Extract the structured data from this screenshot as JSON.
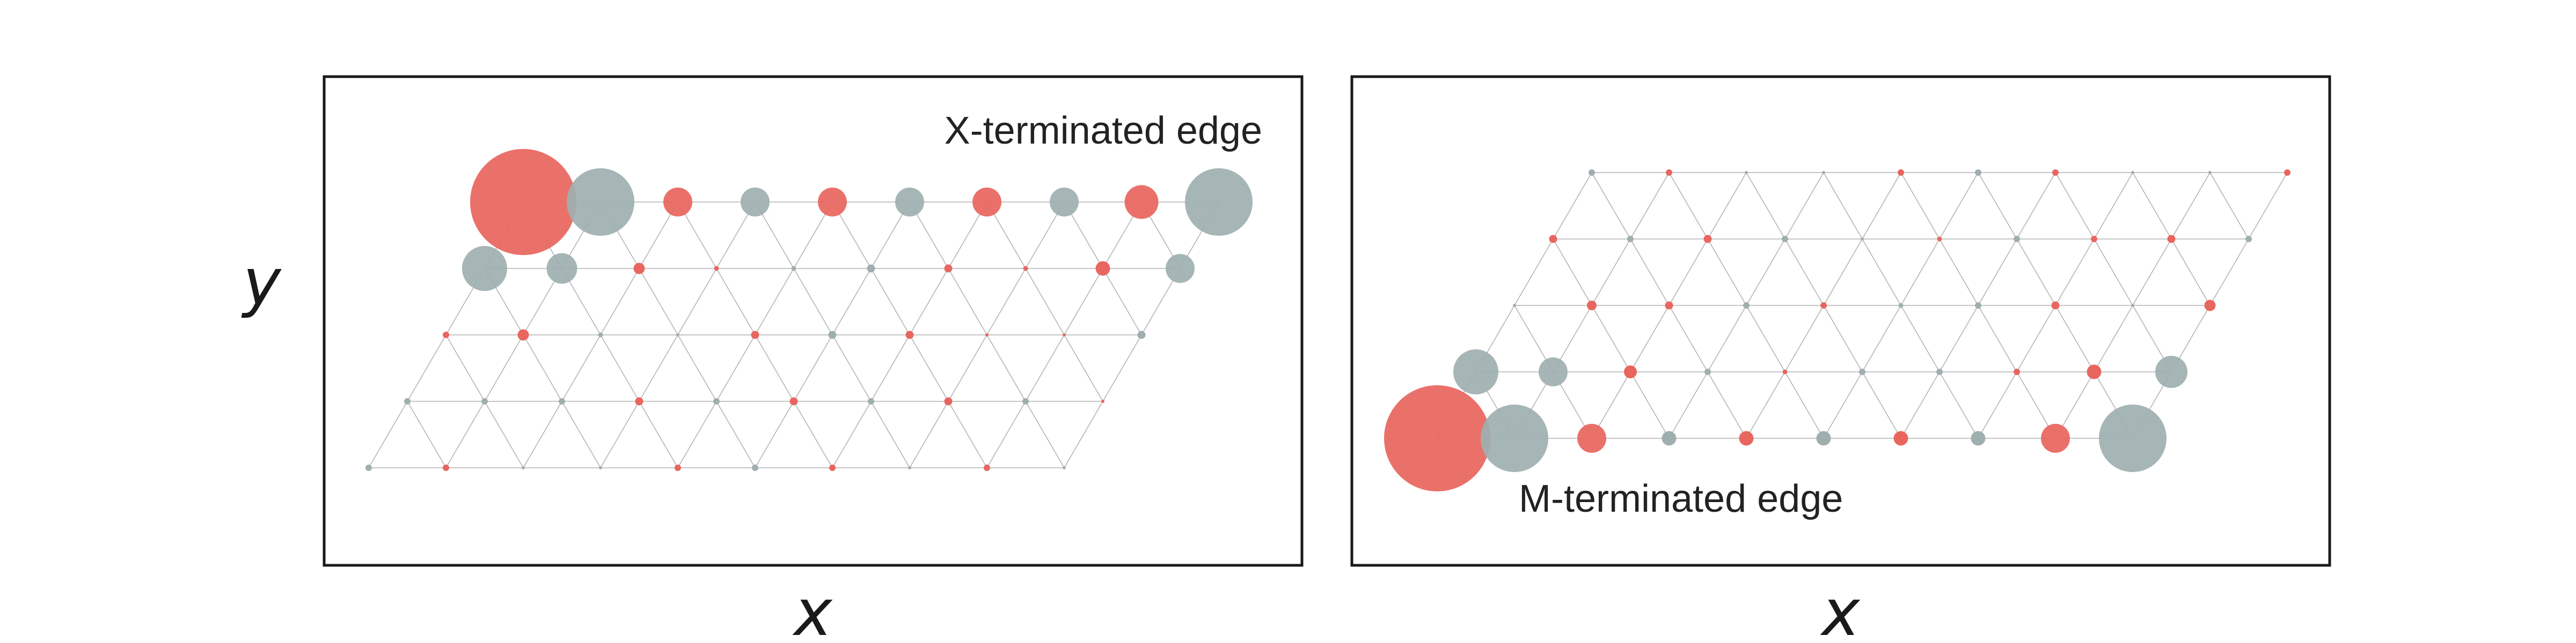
{
  "labels": {
    "y_axis": "y",
    "left_x_axis": "x",
    "right_x_axis": "x",
    "left_caption": "X-terminated edge",
    "right_caption": "M-terminated edge"
  },
  "colors": {
    "metal": "#e8665f",
    "chalcogen": "#9fafaf",
    "lattice": "#b4b4b4",
    "frame": "#1a1a1a"
  },
  "species": {
    "metal": "M",
    "chalcogen": "X"
  },
  "panels": [
    {
      "name": "x-terminated",
      "edge": "top",
      "rows": [
        {
          "species": [
            "M",
            "X",
            "M",
            "X",
            "M",
            "X",
            "M",
            "X",
            "M",
            "X"
          ],
          "sizes": [
            66,
            42,
            18,
            18,
            18,
            18,
            18,
            18,
            21,
            42
          ]
        },
        {
          "species": [
            "X",
            "X",
            "M",
            "M",
            "X",
            "X",
            "M",
            "M",
            "M",
            "X"
          ],
          "sizes": [
            28,
            19,
            7,
            3,
            3,
            5,
            5,
            3,
            9,
            18
          ]
        },
        {
          "species": [
            "M",
            "M",
            "X",
            "X",
            "M",
            "X",
            "M",
            "M",
            "M",
            "X"
          ],
          "sizes": [
            4,
            7,
            3,
            2,
            5,
            5,
            5,
            2,
            2,
            5
          ]
        },
        {
          "species": [
            "X",
            "X",
            "X",
            "M",
            "X",
            "M",
            "X",
            "M",
            "X",
            "M"
          ],
          "sizes": [
            4,
            4,
            4,
            5,
            4,
            5,
            4,
            5,
            4,
            2
          ]
        },
        {
          "species": [
            "X",
            "M",
            "X",
            "X",
            "M",
            "X",
            "M",
            "X",
            "M",
            "X"
          ],
          "sizes": [
            4,
            4,
            2,
            2,
            4,
            4,
            4,
            2,
            4,
            2
          ]
        }
      ]
    },
    {
      "name": "m-terminated",
      "edge": "bottom",
      "rows": [
        {
          "species": [
            "X",
            "M",
            "X",
            "X",
            "M",
            "X",
            "M",
            "X",
            "X",
            "M"
          ],
          "sizes": [
            4,
            4,
            2,
            2,
            4,
            4,
            4,
            2,
            2,
            4
          ]
        },
        {
          "species": [
            "M",
            "X",
            "M",
            "X",
            "X",
            "M",
            "X",
            "M",
            "M",
            "X"
          ],
          "sizes": [
            5,
            4,
            5,
            4,
            2,
            3,
            4,
            4,
            5,
            4
          ]
        },
        {
          "species": [
            "X",
            "M",
            "M",
            "X",
            "M",
            "X",
            "X",
            "M",
            "X",
            "M"
          ],
          "sizes": [
            2,
            6,
            5,
            4,
            4,
            3,
            4,
            5,
            2,
            7
          ]
        },
        {
          "species": [
            "X",
            "X",
            "M",
            "X",
            "M",
            "X",
            "X",
            "M",
            "M",
            "X"
          ],
          "sizes": [
            28,
            18,
            8,
            4,
            3,
            4,
            4,
            4,
            9,
            20
          ]
        },
        {
          "species": [
            "M",
            "X",
            "M",
            "X",
            "M",
            "X",
            "M",
            "X",
            "M",
            "X"
          ],
          "sizes": [
            66,
            42,
            18,
            9,
            9,
            9,
            9,
            9,
            18,
            42
          ]
        }
      ]
    }
  ]
}
